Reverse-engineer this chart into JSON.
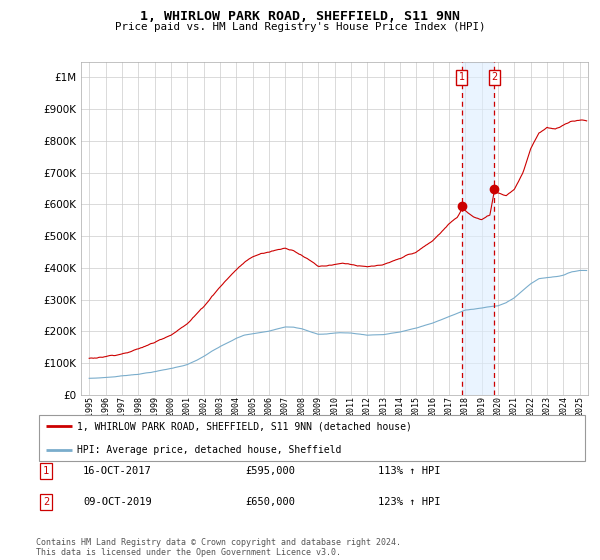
{
  "title": "1, WHIRLOW PARK ROAD, SHEFFIELD, S11 9NN",
  "subtitle": "Price paid vs. HM Land Registry's House Price Index (HPI)",
  "legend_line1": "1, WHIRLOW PARK ROAD, SHEFFIELD, S11 9NN (detached house)",
  "legend_line2": "HPI: Average price, detached house, Sheffield",
  "footer": "Contains HM Land Registry data © Crown copyright and database right 2024.\nThis data is licensed under the Open Government Licence v3.0.",
  "sale1_date": "16-OCT-2017",
  "sale1_price": 595000,
  "sale1_hpi": "113% ↑ HPI",
  "sale1_year": 2017.79,
  "sale2_date": "09-OCT-2019",
  "sale2_price": 650000,
  "sale2_hpi": "123% ↑ HPI",
  "sale2_year": 2019.77,
  "red_color": "#cc0000",
  "blue_color": "#7aadcc",
  "marker_box_color": "#cc0000",
  "shaded_color": "#ddeeff",
  "grid_color": "#cccccc",
  "ylim": [
    0,
    1050000
  ],
  "xlim_start": 1994.5,
  "xlim_end": 2025.5
}
